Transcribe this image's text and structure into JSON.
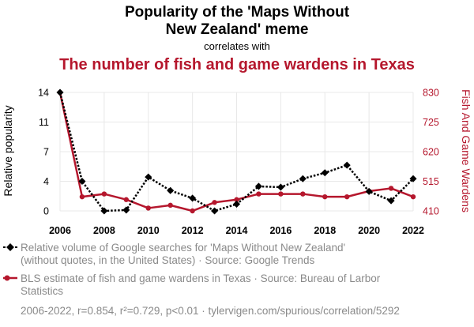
{
  "chart_data": {
    "type": "line",
    "title_line1": "Popularity of the 'Maps Without",
    "title_line2": "New Zealand' meme",
    "connector": "correlates with",
    "title_second": "The number of fish and game wardens in Texas",
    "ylabel_left": "Relative popularity",
    "ylabel_right": "Fish And Game Wardens",
    "x": [
      2006,
      2007,
      2008,
      2009,
      2010,
      2011,
      2012,
      2013,
      2014,
      2015,
      2016,
      2017,
      2018,
      2019,
      2020,
      2021,
      2022
    ],
    "x_ticks": [
      "2006",
      "2008",
      "2010",
      "2012",
      "2014",
      "2016",
      "2018",
      "2020",
      "2022"
    ],
    "y_left_ticks": [
      "0",
      "4",
      "7",
      "11",
      "14"
    ],
    "y_left_lim": [
      0,
      14
    ],
    "y_right_ticks": [
      "410",
      "515",
      "620",
      "725",
      "830"
    ],
    "y_right_lim": [
      410,
      830
    ],
    "series": [
      {
        "name": "Relative volume of Google searches for 'Maps Without New Zealand' (without quotes, in the United States)",
        "axis": "left",
        "color": "#000000",
        "values": [
          14,
          3.5,
          0,
          0.1,
          4,
          2.4,
          1.5,
          0,
          0.8,
          2.9,
          2.8,
          3.8,
          4.5,
          5.4,
          2.3,
          1.2,
          3.8
        ]
      },
      {
        "name": "BLS estimate of fish and game wardens in Texas",
        "axis": "right",
        "color": "#b5172d",
        "values": [
          830,
          460,
          470,
          450,
          420,
          430,
          410,
          440,
          450,
          470,
          470,
          470,
          460,
          460,
          480,
          490,
          460
        ]
      }
    ],
    "legend": [
      {
        "line1": "Relative volume of Google searches for 'Maps Without New Zealand'",
        "line2": "(without quotes, in the United States) · Source: Google Trends"
      },
      {
        "line1": "BLS estimate of fish and game wardens in Texas · Source: Bureau of Larbor",
        "line2": "Statistics"
      }
    ],
    "footer": "2006-2022, r=0.854, r²=0.729, p<0.01 · tylervigen.com/spurious/correlation/5292",
    "colors": {
      "black": "#000000",
      "red": "#b5172d",
      "grey": "#8a8a8a",
      "grid": "#e8e8e8"
    }
  }
}
